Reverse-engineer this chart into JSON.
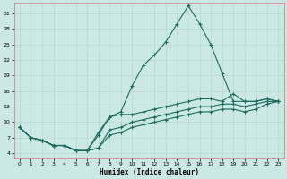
{
  "xlabel": "Humidex (Indice chaleur)",
  "xlim": [
    -0.5,
    23.5
  ],
  "ylim": [
    3,
    33
  ],
  "yticks": [
    4,
    7,
    10,
    13,
    16,
    19,
    22,
    25,
    28,
    31
  ],
  "xticks": [
    0,
    1,
    2,
    3,
    4,
    5,
    6,
    7,
    8,
    9,
    10,
    11,
    12,
    13,
    14,
    15,
    16,
    17,
    18,
    19,
    20,
    21,
    22,
    23
  ],
  "bg_color": "#cce8e4",
  "line_color": "#1a6b5e",
  "grid_color": "#b8d4d0",
  "line1_x": [
    0,
    1,
    2,
    3,
    4,
    5,
    6,
    7,
    8,
    9,
    10,
    11,
    12,
    13,
    14,
    15,
    16,
    17,
    18,
    19,
    20,
    21,
    22,
    23
  ],
  "line1_y": [
    9,
    7,
    6.5,
    5.5,
    5.5,
    4.5,
    4.5,
    8,
    11,
    12,
    17,
    21,
    23,
    25.5,
    29,
    32.5,
    29,
    25,
    19.5,
    14,
    14,
    14,
    14.5,
    14
  ],
  "line2_x": [
    0,
    1,
    2,
    3,
    4,
    5,
    6,
    7,
    8,
    9,
    10,
    11,
    12,
    13,
    14,
    15,
    16,
    17,
    18,
    19,
    20,
    21,
    22,
    23
  ],
  "line2_y": [
    9,
    7,
    6.5,
    5.5,
    5.5,
    4.5,
    4.5,
    7.5,
    11,
    11.5,
    11.5,
    12,
    12.5,
    13,
    13.5,
    14,
    14.5,
    14.5,
    14,
    15.5,
    14,
    14,
    14.5,
    14
  ],
  "line3_x": [
    0,
    1,
    2,
    3,
    4,
    5,
    6,
    7,
    8,
    9,
    10,
    11,
    12,
    13,
    14,
    15,
    16,
    17,
    18,
    19,
    20,
    21,
    22,
    23
  ],
  "line3_y": [
    9,
    7,
    6.5,
    5.5,
    5.5,
    4.5,
    4.5,
    5,
    8.5,
    9,
    10,
    10.5,
    11,
    11.5,
    12,
    12.5,
    13,
    13,
    13.5,
    13.5,
    13,
    13.5,
    14,
    14
  ],
  "line4_x": [
    0,
    1,
    2,
    3,
    4,
    5,
    6,
    7,
    8,
    9,
    10,
    11,
    12,
    13,
    14,
    15,
    16,
    17,
    18,
    19,
    20,
    21,
    22,
    23
  ],
  "line4_y": [
    9,
    7,
    6.5,
    5.5,
    5.5,
    4.5,
    4.5,
    5,
    7.5,
    8,
    9,
    9.5,
    10,
    10.5,
    11,
    11.5,
    12,
    12,
    12.5,
    12.5,
    12,
    12.5,
    13.5,
    14
  ]
}
